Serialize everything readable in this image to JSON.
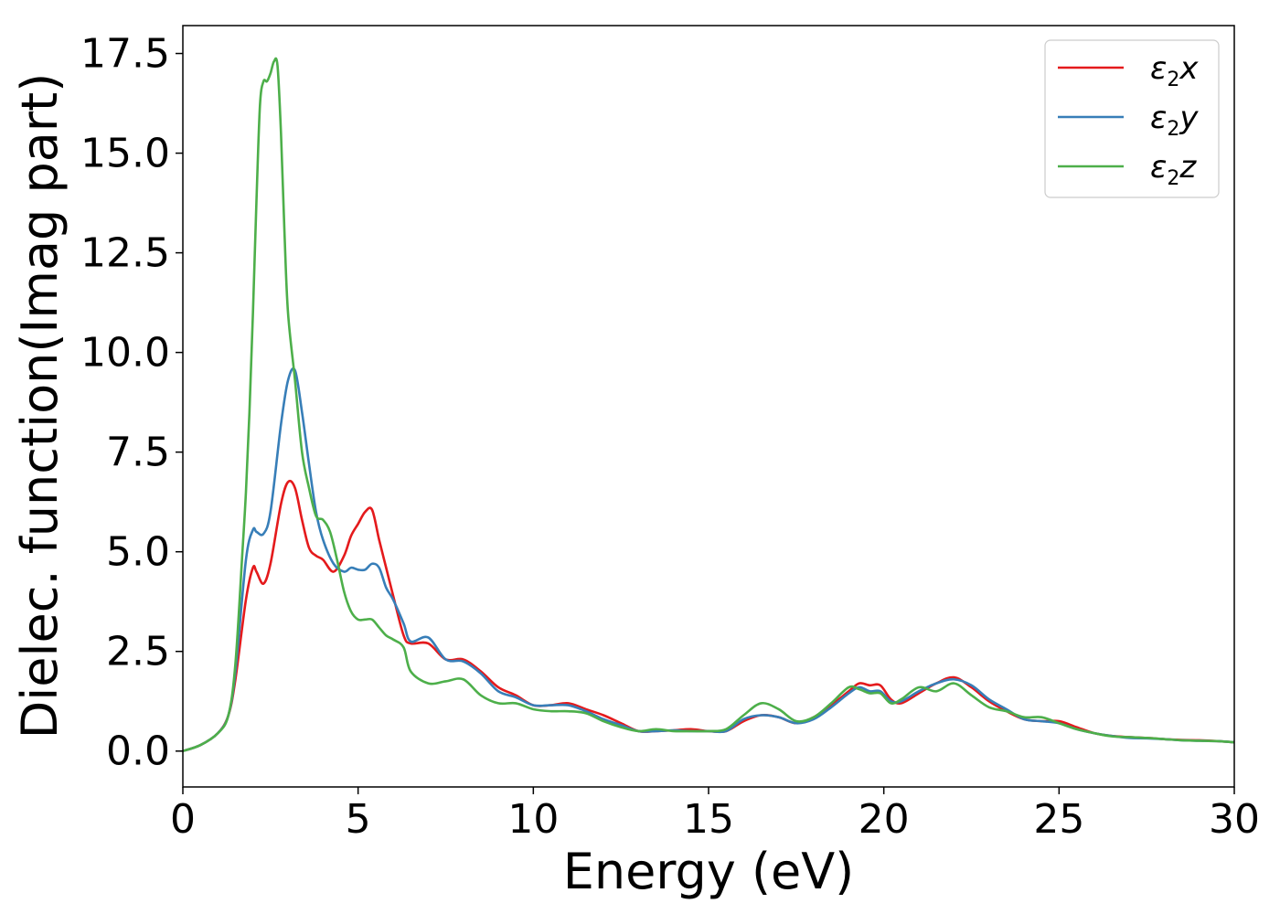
{
  "chart_data": {
    "type": "line",
    "title": "",
    "xlabel": "Energy (eV)",
    "ylabel": "Dielec. function(Imag part)",
    "xlim": [
      0,
      30
    ],
    "ylim": [
      -0.9,
      18.2
    ],
    "xticks": [
      0,
      5,
      10,
      15,
      20,
      25,
      30
    ],
    "xtick_labels": [
      "0",
      "5",
      "10",
      "15",
      "20",
      "25",
      "30"
    ],
    "yticks": [
      0,
      2.5,
      5,
      7.5,
      10,
      12.5,
      15,
      17.5
    ],
    "ytick_labels": [
      "0.0",
      "2.5",
      "5.0",
      "7.5",
      "10.0",
      "12.5",
      "15.0",
      "17.5"
    ],
    "grid": false,
    "legend_position": "top-right",
    "series": [
      {
        "name": "ε₂x",
        "legend_main": "ε",
        "legend_sub": "2",
        "legend_suffix": "x",
        "color": "#e41a1c",
        "x": [
          0,
          0.5,
          1.0,
          1.3,
          1.5,
          1.8,
          2.0,
          2.1,
          2.3,
          2.5,
          2.8,
          3.0,
          3.2,
          3.4,
          3.6,
          3.8,
          4.0,
          4.3,
          4.6,
          4.8,
          5.0,
          5.2,
          5.4,
          5.6,
          5.8,
          6.0,
          6.3,
          6.5,
          7.0,
          7.5,
          8.0,
          8.5,
          9.0,
          9.5,
          10.0,
          10.5,
          11.0,
          11.5,
          12.0,
          12.5,
          13.0,
          13.5,
          14.0,
          14.5,
          15.0,
          15.5,
          16.0,
          16.5,
          17.0,
          17.5,
          18.0,
          18.5,
          19.0,
          19.3,
          19.6,
          19.9,
          20.2,
          20.5,
          21.0,
          21.5,
          22.0,
          22.5,
          23.0,
          23.5,
          24.0,
          24.5,
          25.0,
          25.5,
          26.0,
          26.5,
          27.0,
          27.5,
          28.0,
          28.5,
          29.0,
          29.5,
          30.0
        ],
        "values": [
          0,
          0.15,
          0.45,
          0.9,
          1.8,
          3.8,
          4.6,
          4.5,
          4.2,
          4.7,
          6.2,
          6.75,
          6.6,
          5.8,
          5.1,
          4.9,
          4.8,
          4.5,
          4.9,
          5.4,
          5.7,
          6.0,
          6.05,
          5.3,
          4.6,
          3.9,
          2.9,
          2.7,
          2.7,
          2.3,
          2.3,
          2.0,
          1.6,
          1.4,
          1.15,
          1.15,
          1.2,
          1.05,
          0.9,
          0.7,
          0.5,
          0.5,
          0.52,
          0.55,
          0.5,
          0.5,
          0.75,
          0.9,
          0.85,
          0.7,
          0.85,
          1.15,
          1.5,
          1.7,
          1.65,
          1.65,
          1.3,
          1.2,
          1.45,
          1.7,
          1.85,
          1.6,
          1.25,
          1.0,
          0.8,
          0.75,
          0.75,
          0.6,
          0.45,
          0.38,
          0.35,
          0.33,
          0.3,
          0.28,
          0.27,
          0.25,
          0.22
        ]
      },
      {
        "name": "ε₂y",
        "legend_main": "ε",
        "legend_sub": "2",
        "legend_suffix": "y",
        "color": "#377eb8",
        "x": [
          0,
          0.5,
          1.0,
          1.3,
          1.5,
          1.8,
          2.0,
          2.1,
          2.3,
          2.5,
          2.8,
          3.0,
          3.2,
          3.4,
          3.6,
          3.8,
          4.0,
          4.3,
          4.6,
          4.8,
          5.0,
          5.2,
          5.4,
          5.6,
          5.8,
          6.0,
          6.3,
          6.5,
          7.0,
          7.5,
          8.0,
          8.5,
          9.0,
          9.5,
          10.0,
          10.5,
          11.0,
          11.5,
          12.0,
          12.5,
          13.0,
          13.5,
          14.0,
          14.5,
          15.0,
          15.5,
          16.0,
          16.5,
          17.0,
          17.5,
          18.0,
          18.5,
          19.0,
          19.3,
          19.6,
          19.9,
          20.2,
          20.5,
          21.0,
          21.5,
          22.0,
          22.5,
          23.0,
          23.5,
          24.0,
          24.5,
          25.0,
          25.5,
          26.0,
          26.5,
          27.0,
          27.5,
          28.0,
          28.5,
          29.0,
          29.5,
          30.0
        ],
        "values": [
          0,
          0.15,
          0.45,
          0.9,
          2.0,
          4.8,
          5.55,
          5.5,
          5.45,
          6.0,
          8.2,
          9.3,
          9.55,
          8.5,
          7.2,
          6.0,
          5.3,
          4.7,
          4.5,
          4.6,
          4.55,
          4.55,
          4.7,
          4.6,
          4.1,
          3.8,
          3.2,
          2.75,
          2.85,
          2.3,
          2.25,
          1.95,
          1.5,
          1.35,
          1.15,
          1.15,
          1.15,
          1.0,
          0.8,
          0.65,
          0.5,
          0.5,
          0.52,
          0.5,
          0.5,
          0.5,
          0.8,
          0.9,
          0.85,
          0.7,
          0.8,
          1.1,
          1.45,
          1.6,
          1.5,
          1.5,
          1.25,
          1.25,
          1.5,
          1.7,
          1.8,
          1.65,
          1.3,
          1.05,
          0.8,
          0.75,
          0.7,
          0.55,
          0.45,
          0.38,
          0.33,
          0.32,
          0.3,
          0.27,
          0.26,
          0.25,
          0.22
        ]
      },
      {
        "name": "ε₂z",
        "legend_main": "ε",
        "legend_sub": "2",
        "legend_suffix": "z",
        "color": "#4daf4a",
        "x": [
          0,
          0.5,
          1.0,
          1.3,
          1.5,
          1.7,
          1.8,
          1.9,
          2.0,
          2.1,
          2.2,
          2.3,
          2.4,
          2.5,
          2.6,
          2.7,
          2.8,
          2.9,
          3.0,
          3.2,
          3.4,
          3.6,
          3.8,
          4.0,
          4.2,
          4.4,
          4.6,
          4.8,
          5.0,
          5.2,
          5.4,
          5.6,
          5.8,
          6.0,
          6.3,
          6.5,
          7.0,
          7.5,
          8.0,
          8.5,
          9.0,
          9.5,
          10.0,
          10.5,
          11.0,
          11.5,
          12.0,
          12.5,
          13.0,
          13.5,
          14.0,
          14.5,
          15.0,
          15.5,
          16.0,
          16.5,
          17.0,
          17.5,
          18.0,
          18.5,
          19.0,
          19.3,
          19.6,
          19.9,
          20.2,
          20.5,
          21.0,
          21.5,
          22.0,
          22.5,
          23.0,
          23.5,
          24.0,
          24.5,
          25.0,
          25.5,
          26.0,
          26.5,
          27.0,
          27.5,
          28.0,
          28.5,
          29.0,
          29.5,
          30.0
        ],
        "values": [
          0,
          0.15,
          0.45,
          0.9,
          2.2,
          5.0,
          6.5,
          8.5,
          11.0,
          13.8,
          16.2,
          16.8,
          16.8,
          17.0,
          17.3,
          17.2,
          15.5,
          13.0,
          11.0,
          9.3,
          7.5,
          6.6,
          5.9,
          5.8,
          5.5,
          4.8,
          4.0,
          3.5,
          3.3,
          3.3,
          3.3,
          3.1,
          2.9,
          2.8,
          2.6,
          2.0,
          1.7,
          1.75,
          1.8,
          1.4,
          1.2,
          1.2,
          1.05,
          1.0,
          1.0,
          0.95,
          0.75,
          0.6,
          0.5,
          0.55,
          0.5,
          0.5,
          0.5,
          0.55,
          0.9,
          1.2,
          1.05,
          0.75,
          0.85,
          1.2,
          1.6,
          1.55,
          1.45,
          1.45,
          1.2,
          1.3,
          1.6,
          1.5,
          1.7,
          1.4,
          1.1,
          1.0,
          0.85,
          0.85,
          0.7,
          0.55,
          0.45,
          0.37,
          0.35,
          0.33,
          0.3,
          0.27,
          0.26,
          0.25,
          0.22
        ]
      }
    ]
  }
}
